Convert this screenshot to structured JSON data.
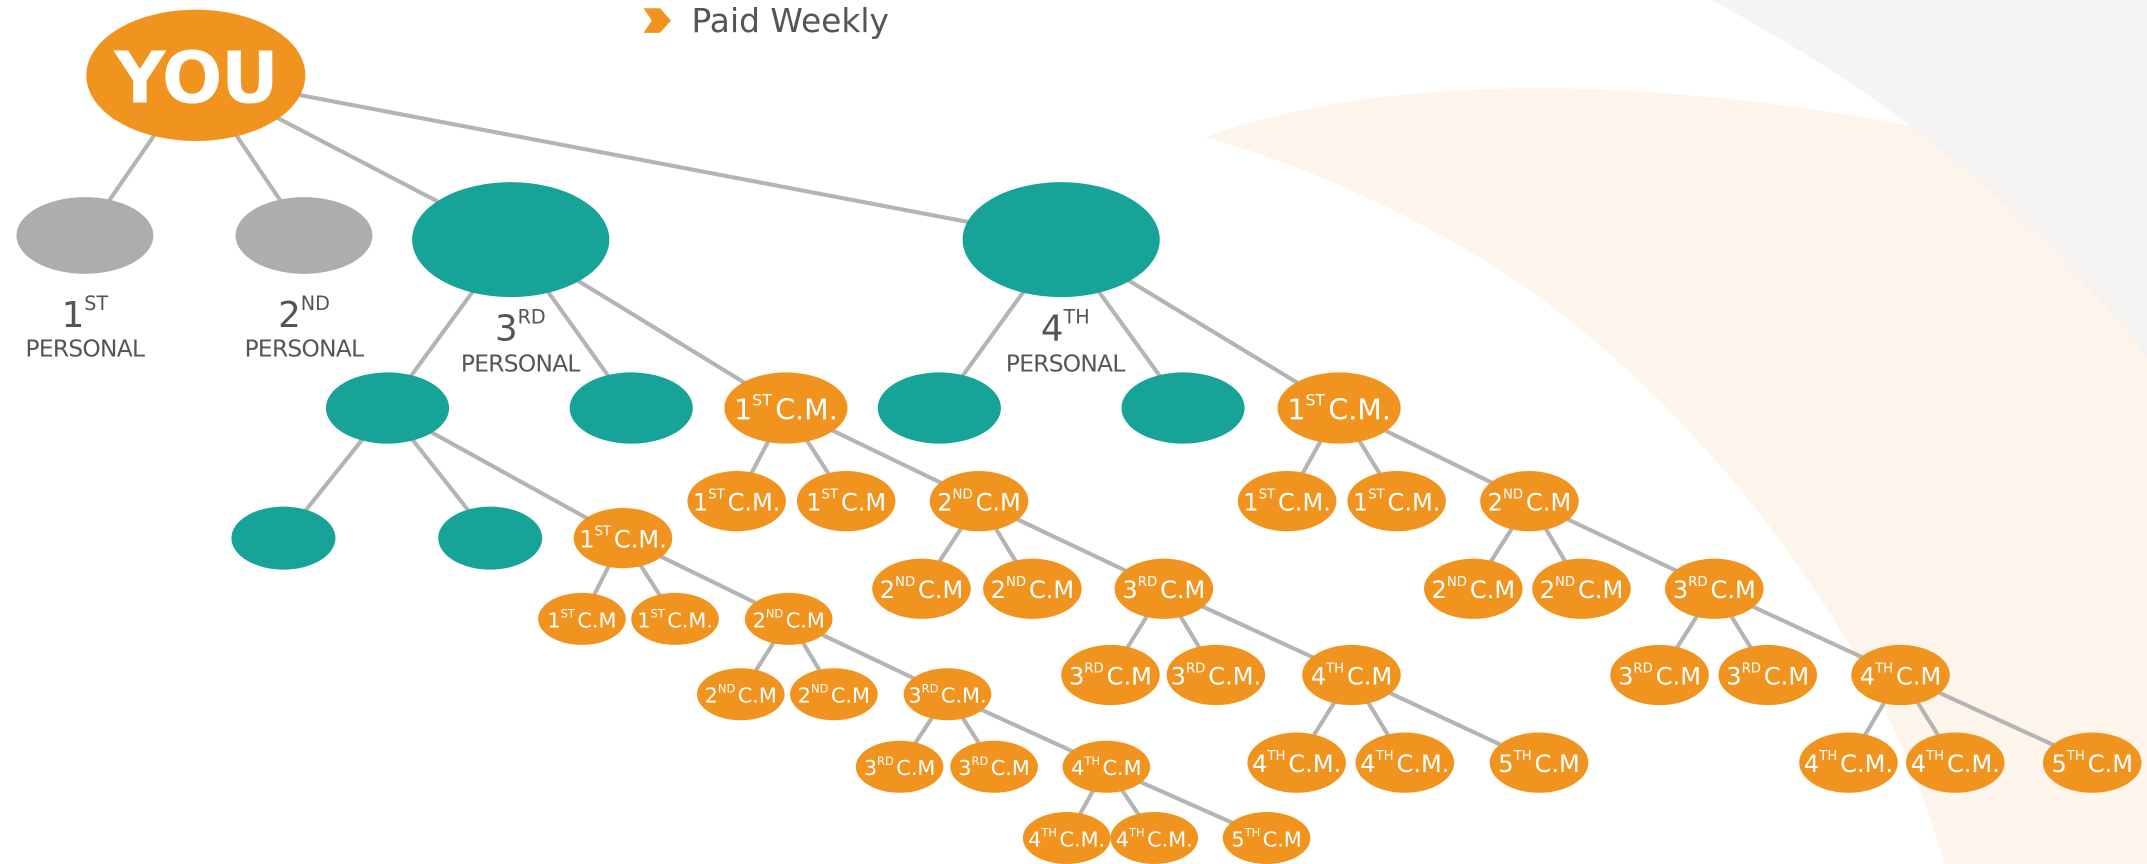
{
  "legend": {
    "text": "Paid Weekly"
  },
  "root": "YOU",
  "personal": [
    {
      "ord": "1",
      "sup": "ST",
      "text": "PERSONAL"
    },
    {
      "ord": "2",
      "sup": "ND",
      "text": "PERSONAL"
    },
    {
      "ord": "3",
      "sup": "RD",
      "text": "PERSONAL"
    },
    {
      "ord": "4",
      "sup": "TH",
      "text": "PERSONAL"
    }
  ],
  "members": [
    {
      "ord": "1",
      "sup": "ST",
      "text": "C.M."
    },
    {
      "ord": "1",
      "sup": "ST",
      "text": "C.M."
    },
    {
      "ord": "1",
      "sup": "ST",
      "text": "C.M."
    },
    {
      "ord": "1",
      "sup": "ST",
      "text": "C.M"
    },
    {
      "ord": "1",
      "sup": "ST",
      "text": "C.M."
    },
    {
      "ord": "2",
      "sup": "ND",
      "text": "C.M"
    },
    {
      "ord": "2",
      "sup": "ND",
      "text": "C.M"
    },
    {
      "ord": "2",
      "sup": "ND",
      "text": "C.M"
    },
    {
      "ord": "3",
      "sup": "RD",
      "text": "C.M."
    },
    {
      "ord": "3",
      "sup": "RD",
      "text": "C.M"
    },
    {
      "ord": "3",
      "sup": "RD",
      "text": "C.M"
    },
    {
      "ord": "4",
      "sup": "TH",
      "text": "C.M"
    },
    {
      "ord": "4",
      "sup": "TH",
      "text": "C.M."
    },
    {
      "ord": "4",
      "sup": "TH",
      "text": "C.M."
    },
    {
      "ord": "5",
      "sup": "TH",
      "text": "C.M"
    },
    {
      "ord": "1",
      "sup": "ST",
      "text": "C.M."
    },
    {
      "ord": "1",
      "sup": "ST",
      "text": "C.M"
    },
    {
      "ord": "2",
      "sup": "ND",
      "text": "C.M"
    },
    {
      "ord": "2",
      "sup": "ND",
      "text": "C.M"
    },
    {
      "ord": "2",
      "sup": "ND",
      "text": "C.M"
    },
    {
      "ord": "3",
      "sup": "RD",
      "text": "C.M"
    },
    {
      "ord": "3",
      "sup": "RD",
      "text": "C.M"
    },
    {
      "ord": "3",
      "sup": "RD",
      "text": "C.M."
    },
    {
      "ord": "4",
      "sup": "TH",
      "text": "C.M"
    },
    {
      "ord": "4",
      "sup": "TH",
      "text": "C.M."
    },
    {
      "ord": "4",
      "sup": "TH",
      "text": "C.M."
    },
    {
      "ord": "5",
      "sup": "TH",
      "text": "C.M"
    },
    {
      "ord": "1",
      "sup": "ST",
      "text": "C.M."
    },
    {
      "ord": "1",
      "sup": "ST",
      "text": "C.M."
    },
    {
      "ord": "2",
      "sup": "ND",
      "text": "C.M"
    },
    {
      "ord": "2",
      "sup": "ND",
      "text": "C.M"
    },
    {
      "ord": "2",
      "sup": "ND",
      "text": "C.M"
    },
    {
      "ord": "3",
      "sup": "RD",
      "text": "C.M"
    },
    {
      "ord": "3",
      "sup": "RD",
      "text": "C.M"
    },
    {
      "ord": "3",
      "sup": "RD",
      "text": "C.M"
    },
    {
      "ord": "4",
      "sup": "TH",
      "text": "C.M"
    },
    {
      "ord": "4",
      "sup": "TH",
      "text": "C.M."
    },
    {
      "ord": "4",
      "sup": "TH",
      "text": "C.M."
    },
    {
      "ord": "5",
      "sup": "TH",
      "text": "C.M"
    }
  ]
}
